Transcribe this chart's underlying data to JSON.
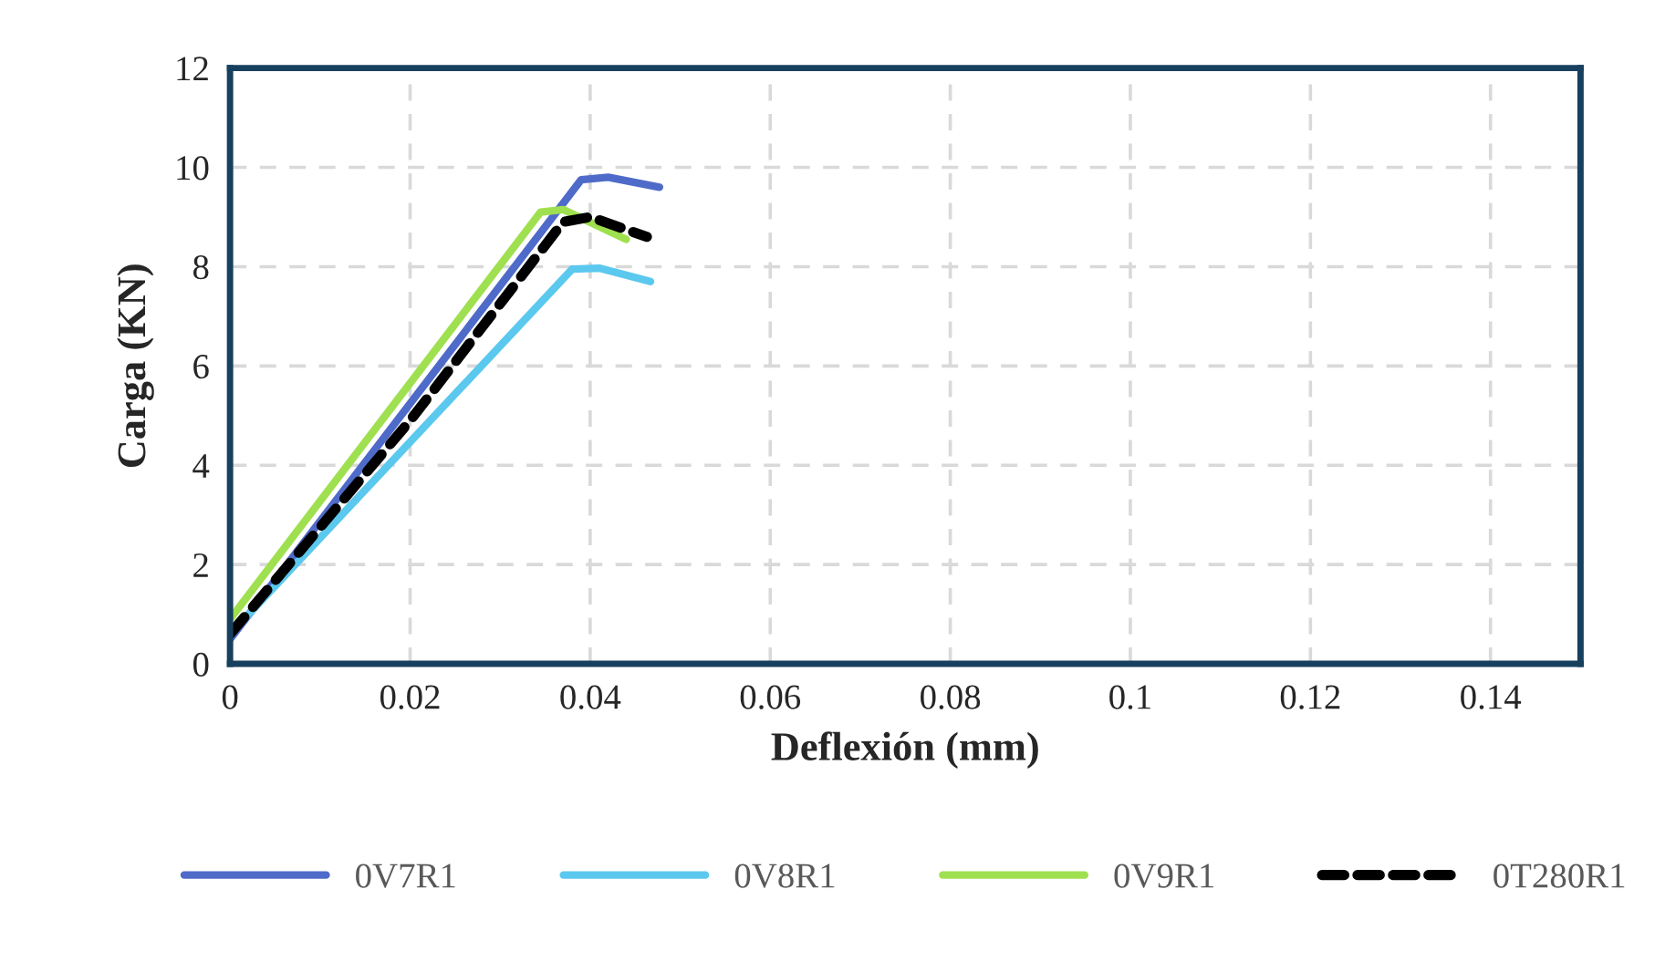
{
  "chart_data": {
    "type": "line",
    "xlabel": "Deflexión (mm)",
    "ylabel": "Carga (KN)",
    "xlim": [
      0,
      0.15
    ],
    "xticks": [
      0,
      0.02,
      0.04,
      0.06,
      0.08,
      0.1,
      0.12,
      0.14
    ],
    "ylim": [
      0,
      12
    ],
    "yticks": [
      0,
      2,
      4,
      6,
      8,
      10,
      12
    ],
    "grid": true,
    "legend": "bottom",
    "series": [
      {
        "name": "0V7R1",
        "color": "#4f6bc9",
        "line_style": "solid",
        "x": [
          0,
          0.039,
          0.042,
          0.0477
        ],
        "values": [
          0.5,
          9.75,
          9.8,
          9.6
        ]
      },
      {
        "name": "0V8R1",
        "color": "#5bc8ee",
        "line_style": "solid",
        "x": [
          0,
          0.038,
          0.041,
          0.0467
        ],
        "values": [
          0.6,
          7.95,
          7.97,
          7.7
        ]
      },
      {
        "name": "0V9R1",
        "color": "#9fe050",
        "line_style": "solid",
        "x": [
          0,
          0.0345,
          0.037,
          0.044
        ],
        "values": [
          0.9,
          9.1,
          9.15,
          8.55
        ]
      },
      {
        "name": "0T280R1",
        "color": "#000000",
        "line_style": "dashed",
        "x": [
          0,
          0.02,
          0.037,
          0.04,
          0.0463
        ],
        "values": [
          0.6,
          4.9,
          8.9,
          9.0,
          8.6
        ]
      }
    ]
  }
}
